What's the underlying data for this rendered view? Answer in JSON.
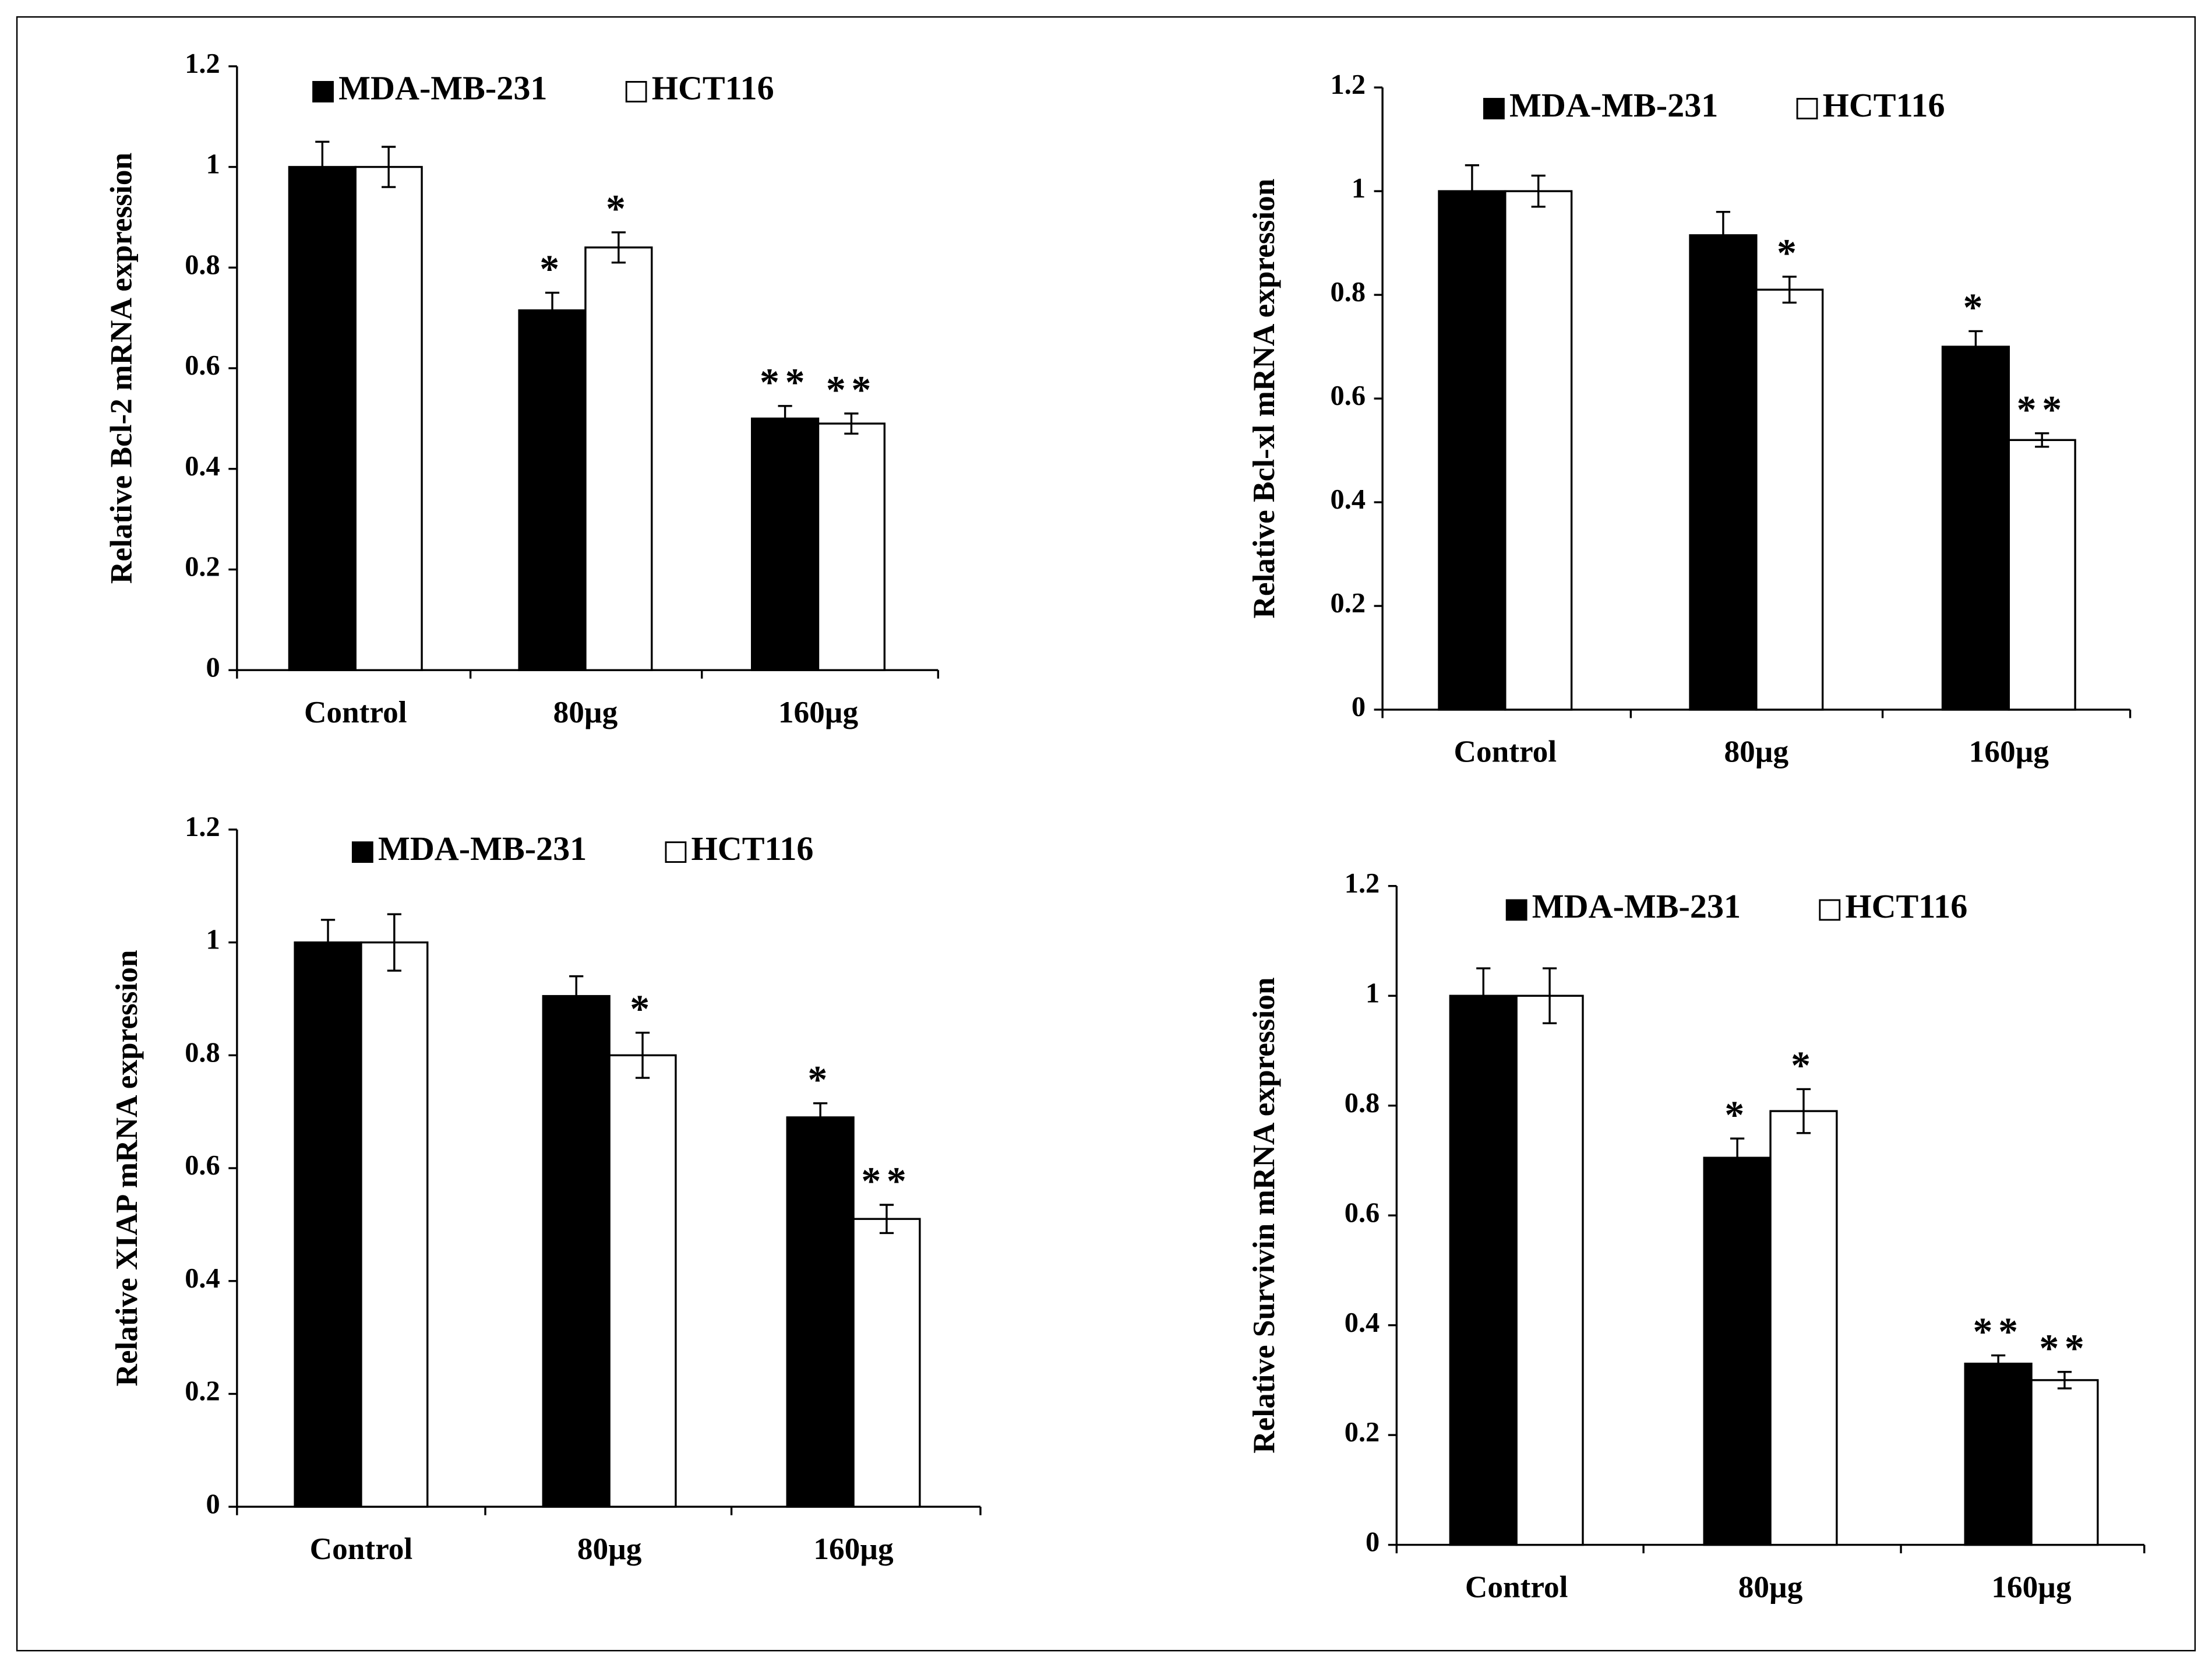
{
  "chart_data": [
    {
      "type": "bar",
      "ylabel": "Relative Bcl-2 mRNA expression",
      "categories": [
        "Control",
        "80µg",
        "160µg"
      ],
      "series": [
        {
          "name": "MDA-MB-231",
          "color": "#000000",
          "values": [
            1.0,
            0.715,
            0.5
          ],
          "errors": [
            0.05,
            0.035,
            0.025
          ],
          "annotations": [
            null,
            "*",
            "**"
          ]
        },
        {
          "name": "HCT116",
          "color": "#ffffff",
          "values": [
            1.0,
            0.84,
            0.49
          ],
          "errors": [
            0.04,
            0.03,
            0.02
          ],
          "annotations": [
            null,
            "*",
            "**"
          ]
        }
      ],
      "ylim": [
        0,
        1.2
      ],
      "yticks": [
        0,
        0.2,
        0.4,
        0.6,
        0.8,
        1,
        1.2
      ]
    },
    {
      "type": "bar",
      "ylabel": "Relative Bcl-xl mRNA expression",
      "categories": [
        "Control",
        "80µg",
        "160µg"
      ],
      "series": [
        {
          "name": "MDA-MB-231",
          "color": "#000000",
          "values": [
            1.0,
            0.915,
            0.7
          ],
          "errors": [
            0.05,
            0.045,
            0.03
          ],
          "annotations": [
            null,
            null,
            "*"
          ]
        },
        {
          "name": "HCT116",
          "color": "#ffffff",
          "values": [
            1.0,
            0.81,
            0.52
          ],
          "errors": [
            0.03,
            0.025,
            0.013
          ],
          "annotations": [
            null,
            "*",
            "**"
          ]
        }
      ],
      "ylim": [
        0,
        1.2
      ],
      "yticks": [
        0,
        0.2,
        0.4,
        0.6,
        0.8,
        1,
        1.2
      ]
    },
    {
      "type": "bar",
      "ylabel": "Relative XIAP mRNA expression",
      "categories": [
        "Control",
        "80µg",
        "160µg"
      ],
      "series": [
        {
          "name": "MDA-MB-231",
          "color": "#000000",
          "values": [
            1.0,
            0.905,
            0.69
          ],
          "errors": [
            0.04,
            0.035,
            0.025
          ],
          "annotations": [
            null,
            null,
            "*"
          ]
        },
        {
          "name": "HCT116",
          "color": "#ffffff",
          "values": [
            1.0,
            0.8,
            0.51
          ],
          "errors": [
            0.05,
            0.04,
            0.025
          ],
          "annotations": [
            null,
            "*",
            "**"
          ]
        }
      ],
      "ylim": [
        0,
        1.2
      ],
      "yticks": [
        0,
        0.2,
        0.4,
        0.6,
        0.8,
        1,
        1.2
      ]
    },
    {
      "type": "bar",
      "ylabel": "Relative Survivin mRNA expression",
      "categories": [
        "Control",
        "80µg",
        "160µg"
      ],
      "series": [
        {
          "name": "MDA-MB-231",
          "color": "#000000",
          "values": [
            1.0,
            0.705,
            0.33
          ],
          "errors": [
            0.05,
            0.035,
            0.015
          ],
          "annotations": [
            null,
            "*",
            "**"
          ]
        },
        {
          "name": "HCT116",
          "color": "#ffffff",
          "values": [
            1.0,
            0.79,
            0.3
          ],
          "errors": [
            0.05,
            0.04,
            0.015
          ],
          "annotations": [
            null,
            "*",
            "**"
          ]
        }
      ],
      "ylim": [
        0,
        1.2
      ],
      "yticks": [
        0,
        0.2,
        0.4,
        0.6,
        0.8,
        1,
        1.2
      ]
    }
  ]
}
